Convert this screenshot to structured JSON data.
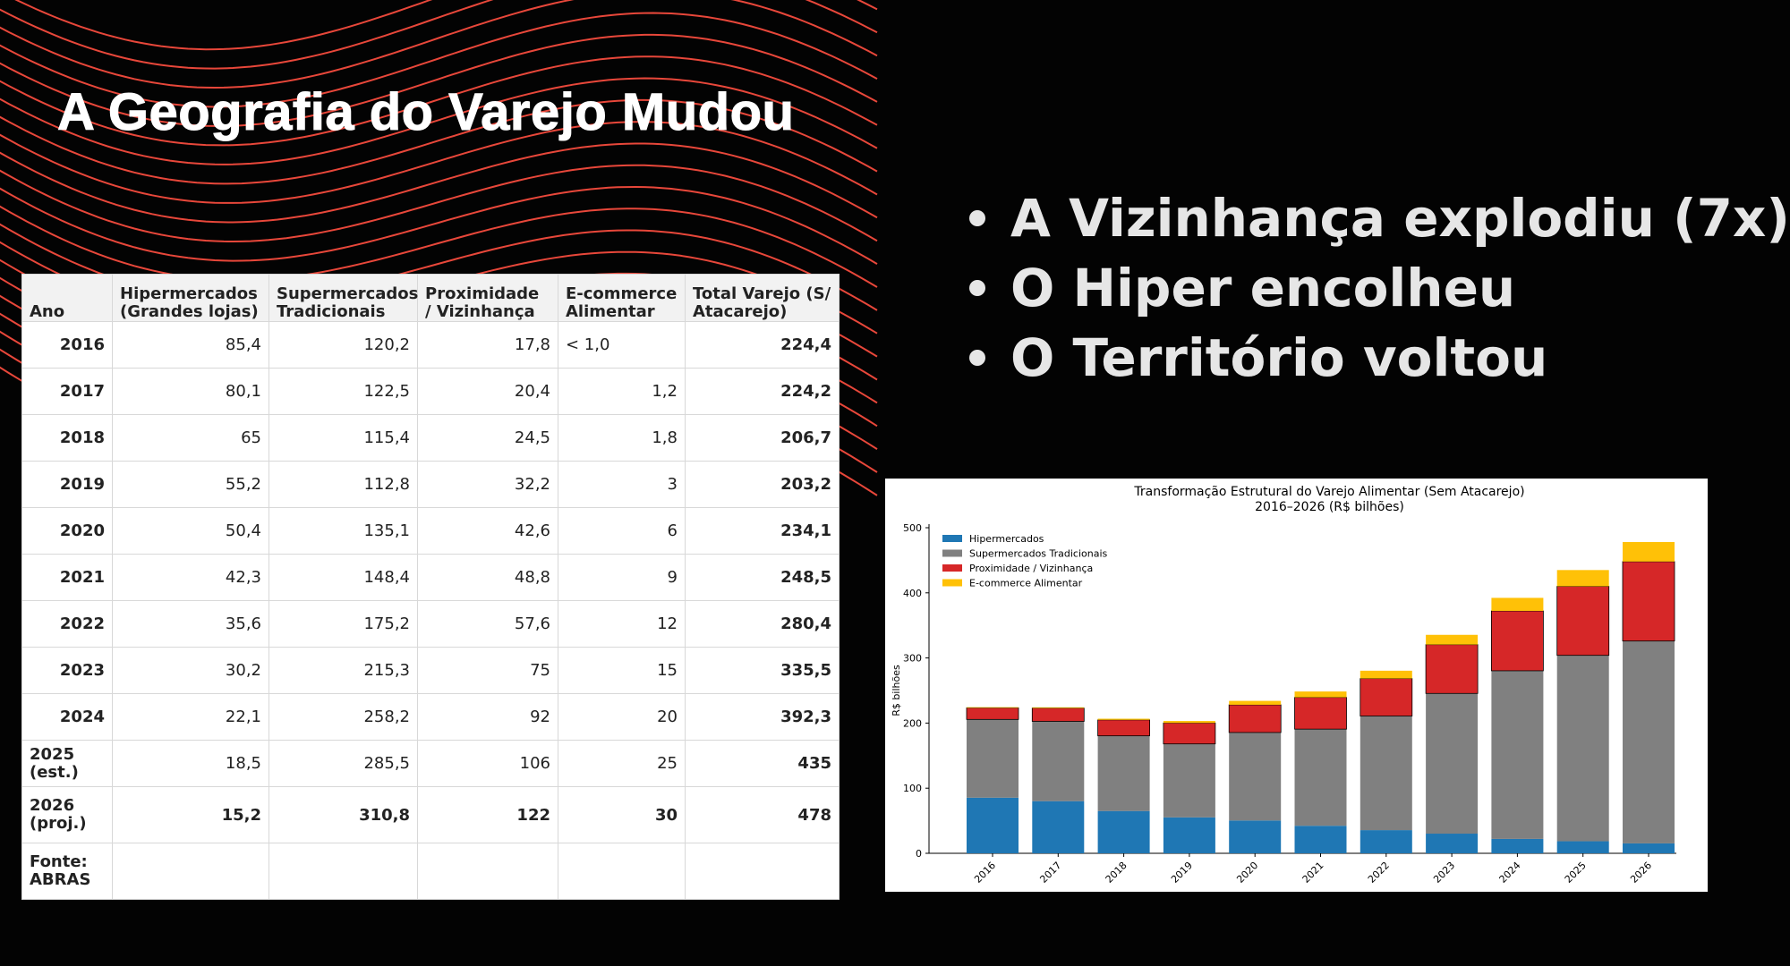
{
  "slide": {
    "title": "A Geografia do Varejo Mudou",
    "bullets": [
      "A Vizinhança explodiu (7x)",
      "O Hiper encolheu",
      "O Território voltou"
    ],
    "accent_color": "#e8473a"
  },
  "table": {
    "headers": [
      "Ano",
      "Hipermercados (Grandes lojas)",
      "Supermercados Tradicionais",
      "Proximidade / Vizinhança",
      "E-commerce Alimentar",
      "Total Varejo (S/ Atacarejo)"
    ],
    "rows": [
      [
        "2016",
        "85,4",
        "120,2",
        "17,8",
        "< 1,0",
        "224,4"
      ],
      [
        "2017",
        "80,1",
        "122,5",
        "20,4",
        "1,2",
        "224,2"
      ],
      [
        "2018",
        "65",
        "115,4",
        "24,5",
        "1,8",
        "206,7"
      ],
      [
        "2019",
        "55,2",
        "112,8",
        "32,2",
        "3",
        "203,2"
      ],
      [
        "2020",
        "50,4",
        "135,1",
        "42,6",
        "6",
        "234,1"
      ],
      [
        "2021",
        "42,3",
        "148,4",
        "48,8",
        "9",
        "248,5"
      ],
      [
        "2022",
        "35,6",
        "175,2",
        "57,6",
        "12",
        "280,4"
      ],
      [
        "2023",
        "30,2",
        "215,3",
        "75",
        "15",
        "335,5"
      ],
      [
        "2024",
        "22,1",
        "258,2",
        "92",
        "20",
        "392,3"
      ],
      [
        "2025 (est.)",
        "18,5",
        "285,5",
        "106",
        "25",
        "435"
      ],
      [
        "2026 (proj.)",
        "15,2",
        "310,8",
        "122",
        "30",
        "478"
      ]
    ],
    "footer": "Fonte: ABRAS"
  },
  "chart_data": {
    "type": "bar",
    "stacked": true,
    "title": "Transformação Estrutural do Varejo Alimentar (Sem Atacarejo)",
    "subtitle": "2016–2026 (R$ bilhões)",
    "xlabel": "",
    "ylabel": "R$ bilhões",
    "ylim": [
      0,
      500
    ],
    "yticks": [
      0,
      100,
      200,
      300,
      400,
      500
    ],
    "legend_position": "top-left",
    "categories": [
      "2016",
      "2017",
      "2018",
      "2019",
      "2020",
      "2021",
      "2022",
      "2023",
      "2024",
      "2025",
      "2026"
    ],
    "series": [
      {
        "name": "Hipermercados",
        "color": "#1f77b4",
        "values": [
          85.4,
          80.1,
          65,
          55.2,
          50.4,
          42.3,
          35.6,
          30.2,
          22.1,
          18.5,
          15.2
        ]
      },
      {
        "name": "Supermercados Tradicionais",
        "color": "#808080",
        "values": [
          120.2,
          122.5,
          115.4,
          112.8,
          135.1,
          148.4,
          175.2,
          215.3,
          258.2,
          285.5,
          310.8
        ]
      },
      {
        "name": "Proximidade / Vizinhança",
        "color": "#d62728",
        "values": [
          17.8,
          20.4,
          24.5,
          32.2,
          42.6,
          48.8,
          57.6,
          75,
          92,
          106,
          122
        ]
      },
      {
        "name": "E-commerce Alimentar",
        "color": "#ffc107",
        "values": [
          1.0,
          1.2,
          1.8,
          3,
          6,
          9,
          12,
          15,
          20,
          25,
          30
        ]
      }
    ]
  }
}
